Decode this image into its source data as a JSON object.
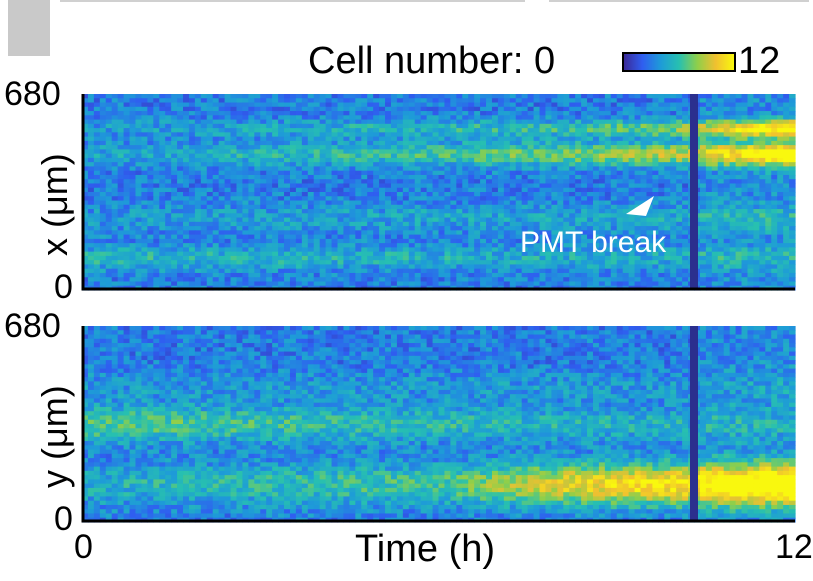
{
  "colorbar": {
    "label": "Cell number: 0",
    "max_label": "12",
    "colors": [
      "#3b2a98",
      "#2f5ef0",
      "#1e9bd8",
      "#27c0b0",
      "#8fcf4a",
      "#f0c030",
      "#f9f80e"
    ]
  },
  "annotation": {
    "text": "PMT break"
  },
  "chart_data": [
    {
      "type": "heatmap",
      "title": "",
      "xlabel": "Time (h)",
      "ylabel": "x (μm)",
      "x_range": [
        0,
        12
      ],
      "y_range": [
        0,
        680
      ],
      "y_ticks": [
        "680",
        "0"
      ],
      "value_range": [
        0,
        12
      ],
      "break_time_h": 10.3,
      "bands": [
        {
          "y_center": 470,
          "width": 40,
          "profile": [
            [
              0,
              1.5
            ],
            [
              4,
              2.5
            ],
            [
              8,
              4.5
            ],
            [
              10.3,
              6
            ],
            [
              12,
              11
            ]
          ]
        },
        {
          "y_center": 560,
          "width": 30,
          "profile": [
            [
              0,
              1
            ],
            [
              8,
              3
            ],
            [
              10.3,
              5
            ],
            [
              12,
              10
            ]
          ]
        },
        {
          "y_center": 250,
          "width": 50,
          "profile": [
            [
              0,
              1
            ],
            [
              6,
              1.5
            ],
            [
              12,
              2
            ]
          ]
        },
        {
          "y_center": 110,
          "width": 40,
          "profile": [
            [
              0,
              2.5
            ],
            [
              6,
              2
            ],
            [
              12,
              2
            ]
          ]
        }
      ],
      "background_value": 3
    },
    {
      "type": "heatmap",
      "title": "",
      "xlabel": "Time (h)",
      "ylabel": "y (μm)",
      "x_range": [
        0,
        12
      ],
      "y_range": [
        0,
        680
      ],
      "y_ticks": [
        "680",
        "0"
      ],
      "x_ticks": [
        "0",
        "12"
      ],
      "value_range": [
        0,
        12
      ],
      "break_time_h": 10.3,
      "bands": [
        {
          "y_center": 130,
          "width": 70,
          "profile": [
            [
              0,
              2
            ],
            [
              6,
              3.5
            ],
            [
              8,
              7
            ],
            [
              10.3,
              9
            ],
            [
              12,
              12
            ]
          ]
        },
        {
          "y_center": 340,
          "width": 60,
          "profile": [
            [
              0,
              4
            ],
            [
              4,
              3
            ],
            [
              10.3,
              2
            ],
            [
              12,
              1.5
            ]
          ]
        },
        {
          "y_center": 470,
          "width": 50,
          "profile": [
            [
              0,
              1
            ],
            [
              12,
              1
            ]
          ]
        }
      ],
      "background_value": 3
    }
  ]
}
